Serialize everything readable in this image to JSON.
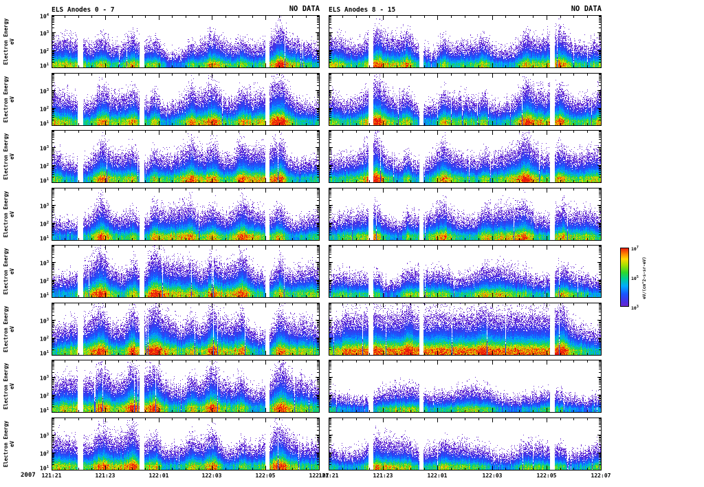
{
  "left_plot": {
    "title": "ELS Anodes 0 - 7",
    "status": "NO DATA"
  },
  "right_plot": {
    "title": "ELS Anodes 8 - 15",
    "status": "NO DATA"
  },
  "y_axis": {
    "title_line1": "Electron Energy",
    "title_line2": "eV",
    "tick_exponents_top_to_bottom": [
      4,
      3,
      2,
      1
    ]
  },
  "x_axis": {
    "year": "2007",
    "ticks": [
      "121:21",
      "121:23",
      "122:01",
      "122:03",
      "122:05",
      "122:07"
    ]
  },
  "colorbar": {
    "unit_label": "eV/(cm^2-s-sr-eV)",
    "tick_exponents_top_to_bottom": [
      7,
      5,
      3
    ]
  },
  "chart_data": {
    "type": "heatmap",
    "description": "Electron energy-time spectrograms; two columns of 8 anode panels each, rainbow log color scale, data gaps shown white",
    "columns": [
      {
        "title": "ELS Anodes 0 - 7",
        "status": "NO DATA",
        "panel_rows": 8
      },
      {
        "title": "ELS Anodes 8 - 15",
        "status": "NO DATA",
        "panel_rows": 8
      }
    ],
    "x": {
      "start": "2007 121:21",
      "end": "2007 122:07",
      "tick_labels": [
        "121:21",
        "121:23",
        "122:01",
        "122:03",
        "122:05",
        "122:07"
      ]
    },
    "y": {
      "label": "Electron Energy eV",
      "scale": "log",
      "min_eV": 10,
      "max_eV": 10000,
      "tick_labels": [
        "10^4",
        "10^3",
        "10^2",
        "10^1"
      ]
    },
    "z": {
      "label": "eV/(cm^2-s-sr-eV)",
      "scale": "log",
      "colormap": "rainbow",
      "tick_labels": [
        "10^7",
        "10^5",
        "10^3"
      ]
    },
    "gaps_frac": {
      "left": [
        [
          0.097,
          0.117
        ],
        [
          0.328,
          0.346
        ],
        [
          0.797,
          0.812
        ]
      ],
      "right": [
        [
          0.146,
          0.163
        ],
        [
          0.332,
          0.346
        ],
        [
          0.81,
          0.827
        ]
      ]
    },
    "enhancements_frac": {
      "left": [
        [
          0.185,
          0.03,
          0.45
        ],
        [
          0.3,
          0.02,
          0.3
        ],
        [
          0.385,
          0.022,
          0.35
        ],
        [
          0.52,
          0.018,
          0.25
        ],
        [
          0.6,
          0.025,
          0.35
        ],
        [
          0.71,
          0.025,
          0.3
        ],
        [
          0.85,
          0.028,
          0.4
        ]
      ],
      "right": [
        [
          0.17,
          0.03,
          0.45
        ],
        [
          0.29,
          0.02,
          0.3
        ],
        [
          0.42,
          0.022,
          0.3
        ],
        [
          0.57,
          0.02,
          0.25
        ],
        [
          0.72,
          0.025,
          0.3
        ],
        [
          0.85,
          0.028,
          0.35
        ]
      ]
    },
    "panels": [
      {
        "column": "left",
        "row": 0,
        "base": 0.52,
        "red": 0.8,
        "scale": 12,
        "peak": 6,
        "seed": 101
      },
      {
        "column": "left",
        "row": 1,
        "base": 0.58,
        "red": 1.0,
        "scale": 13,
        "peak": 7,
        "seed": 102
      },
      {
        "column": "left",
        "row": 2,
        "base": 0.58,
        "red": 0.95,
        "scale": 13,
        "peak": 7,
        "seed": 103
      },
      {
        "column": "left",
        "row": 3,
        "base": 0.56,
        "red": 0.9,
        "scale": 12.5,
        "peak": 7,
        "seed": 104
      },
      {
        "column": "left",
        "row": 4,
        "base": 0.6,
        "red": 1.0,
        "scale": 13.5,
        "peak": 7,
        "seed": 105
      },
      {
        "column": "left",
        "row": 5,
        "base": 0.63,
        "red": 1.05,
        "scale": 14,
        "peak": 8,
        "seed": 106
      },
      {
        "column": "left",
        "row": 6,
        "base": 0.6,
        "red": 1.0,
        "scale": 14,
        "peak": 8,
        "seed": 107
      },
      {
        "column": "left",
        "row": 7,
        "base": 0.58,
        "red": 0.95,
        "scale": 13,
        "peak": 7,
        "seed": 108
      },
      {
        "column": "right",
        "row": 0,
        "base": 0.55,
        "red": 0.9,
        "scale": 12.5,
        "peak": 6,
        "seed": 109
      },
      {
        "column": "right",
        "row": 1,
        "base": 0.58,
        "red": 1.0,
        "scale": 13,
        "peak": 7,
        "seed": 110
      },
      {
        "column": "right",
        "row": 2,
        "base": 0.58,
        "red": 0.95,
        "scale": 13,
        "peak": 7,
        "seed": 111
      },
      {
        "column": "right",
        "row": 3,
        "base": 0.56,
        "red": 0.9,
        "scale": 12.5,
        "peak": 7,
        "seed": 112
      },
      {
        "column": "right",
        "row": 4,
        "base": 0.52,
        "red": 0.55,
        "scale": 12,
        "peak": 6,
        "seed": 113
      },
      {
        "column": "right",
        "row": 5,
        "base": 0.68,
        "red": 1.2,
        "scale": 14,
        "peak": 8,
        "seed": 114,
        "band": [
          0.05,
          0.82,
          0.92
        ]
      },
      {
        "column": "right",
        "row": 6,
        "base": 0.48,
        "red": 0.12,
        "scale": 11,
        "peak": 6,
        "seed": 115
      },
      {
        "column": "right",
        "row": 7,
        "base": 0.52,
        "red": 0.45,
        "scale": 12,
        "peak": 6,
        "seed": 116
      }
    ]
  }
}
